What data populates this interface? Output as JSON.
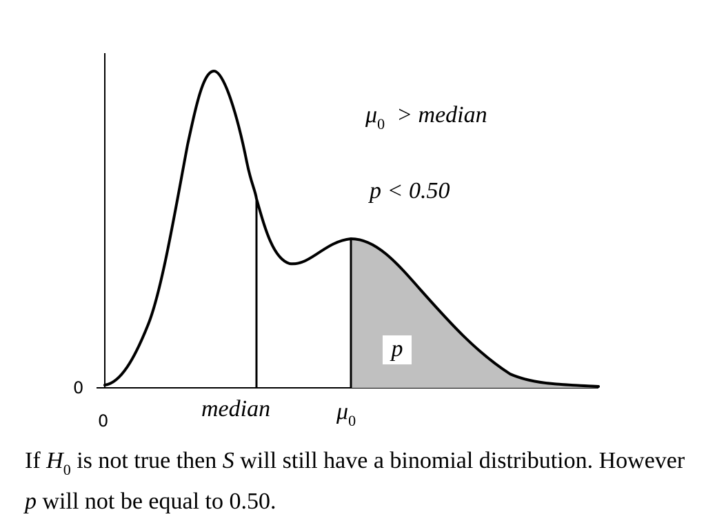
{
  "annotations": {
    "mu_symbol": "μ",
    "mu_subscript": "0",
    "mu_relation": "> median",
    "p_relation": "p < 0.50",
    "p_label": "p"
  },
  "axis": {
    "y_zero": "0",
    "x_zero": "0",
    "median_label": "median",
    "mu_label": "μ",
    "mu_label_subscript": "0"
  },
  "caption": {
    "t1": "If ",
    "H": "H",
    "H_sub": "0",
    "t2": " is not true then ",
    "S": "S",
    "t3": " will still have a binomial distribution. However ",
    "p": "p",
    "t4": " will not be equal to 0.50."
  },
  "colors": {
    "curve": "#000000",
    "shade": "#c0c0c0",
    "axis": "#000000"
  }
}
